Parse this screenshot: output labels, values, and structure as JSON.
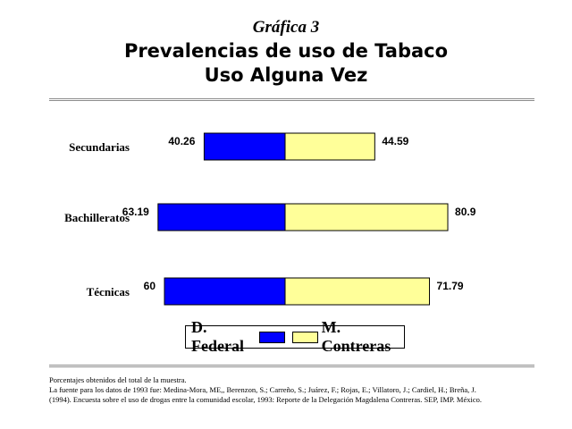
{
  "header": {
    "kicker": "Gráfica 3",
    "title_line1": "Prevalencias de uso de Tabaco",
    "title_line2": "Uso Alguna Vez"
  },
  "colors": {
    "df": "#0000ff",
    "mc": "#ffff99",
    "rule": "#8c8c8c"
  },
  "chart_data": {
    "type": "bar",
    "orientation": "horizontal",
    "layout": "butterfly",
    "categories": [
      "Secundarias",
      "Bachilleratos",
      "Técnicas"
    ],
    "series": [
      {
        "name": "D. Federal",
        "values": [
          40.26,
          63.19,
          60
        ]
      },
      {
        "name": "M. Contreras",
        "values": [
          44.59,
          80.9,
          71.79
        ]
      }
    ],
    "grid": false,
    "legend_position": "bottom"
  },
  "legend": {
    "df_label": "D. Federal",
    "mc_label": "M. Contreras"
  },
  "notes": {
    "line1": "Porcentajes obtenidos del total de la muestra.",
    "line2": "La fuente para los datos de 1993 fue: Medina-Mora, ME,, Berenzon, S.; Carreño, S.; Juárez, F.; Rojas, E.; Villatoro, J.; Cardiel, H.; Breña, J.",
    "line3": "(1994). Encuesta sobre el uso de drogas entre la comunidad escolar, 1993: Reporte de la Delegación Magdalena Contreras. SEP, IMP. México."
  }
}
